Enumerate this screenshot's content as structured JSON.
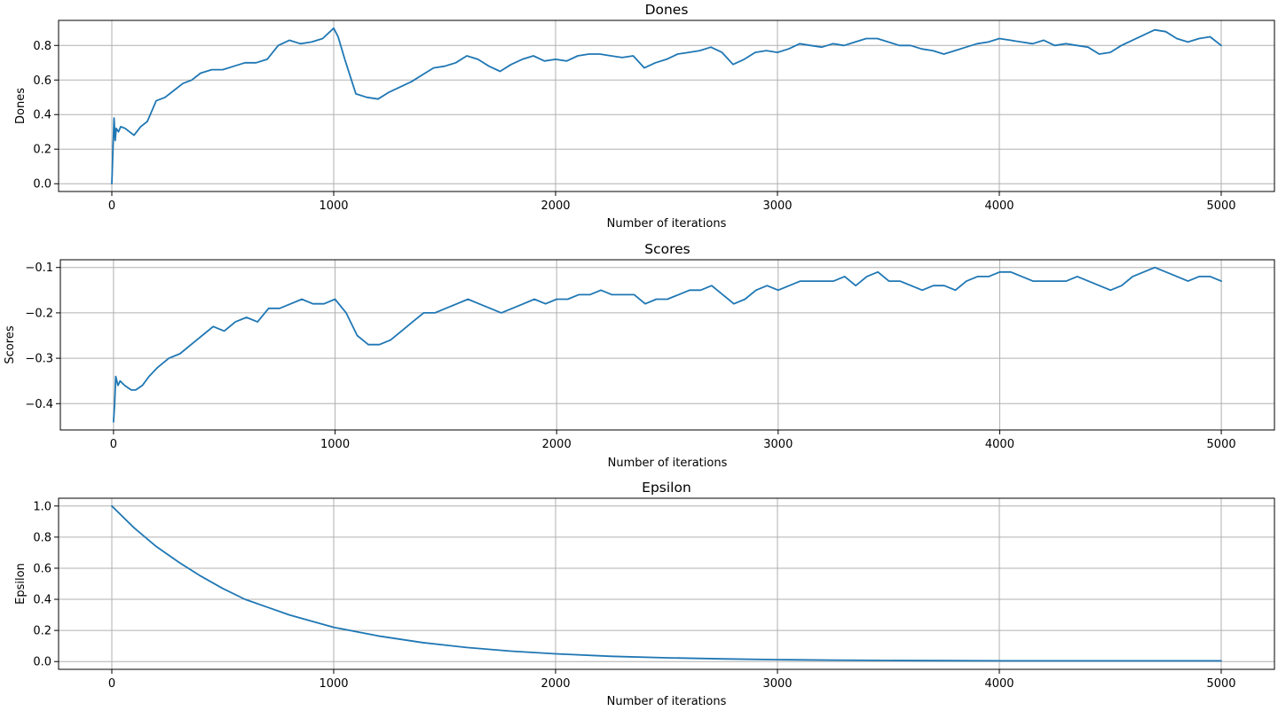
{
  "figure": {
    "background": "#ffffff",
    "line_color": "#1f77b4",
    "grid_color": "#b0b0b0"
  },
  "chart_data": [
    {
      "id": "dones",
      "type": "line",
      "title": "Dones",
      "xlabel": "Number of iterations",
      "ylabel": "Dones",
      "xlim": [
        -240,
        5240
      ],
      "ylim": [
        -0.045,
        0.945
      ],
      "xticks": [
        0,
        1000,
        2000,
        3000,
        4000,
        5000
      ],
      "xtick_labels": [
        "0",
        "1000",
        "2000",
        "3000",
        "4000",
        "5000"
      ],
      "yticks": [
        0.0,
        0.2,
        0.4,
        0.6,
        0.8
      ],
      "ytick_labels": [
        "0.0",
        "0.2",
        "0.4",
        "0.6",
        "0.8"
      ],
      "grid": true,
      "series": [
        {
          "color": "#1f77b4",
          "x": [
            0,
            5,
            10,
            15,
            20,
            30,
            40,
            60,
            80,
            100,
            130,
            160,
            200,
            240,
            280,
            320,
            360,
            400,
            450,
            500,
            550,
            600,
            650,
            700,
            750,
            800,
            850,
            900,
            950,
            1000,
            1020,
            1050,
            1080,
            1100,
            1150,
            1200,
            1250,
            1300,
            1350,
            1400,
            1450,
            1500,
            1550,
            1600,
            1650,
            1700,
            1750,
            1800,
            1850,
            1900,
            1950,
            2000,
            2050,
            2100,
            2150,
            2200,
            2250,
            2300,
            2350,
            2400,
            2450,
            2500,
            2550,
            2600,
            2650,
            2700,
            2750,
            2800,
            2850,
            2900,
            2950,
            3000,
            3050,
            3100,
            3150,
            3200,
            3250,
            3300,
            3350,
            3400,
            3450,
            3500,
            3550,
            3600,
            3650,
            3700,
            3750,
            3800,
            3850,
            3900,
            3950,
            4000,
            4050,
            4100,
            4150,
            4200,
            4250,
            4300,
            4350,
            4400,
            4450,
            4500,
            4550,
            4600,
            4650,
            4700,
            4750,
            4800,
            4850,
            4900,
            4950,
            5000
          ],
          "y": [
            0.0,
            0.2,
            0.38,
            0.25,
            0.32,
            0.3,
            0.33,
            0.32,
            0.3,
            0.28,
            0.33,
            0.36,
            0.48,
            0.5,
            0.54,
            0.58,
            0.6,
            0.64,
            0.66,
            0.66,
            0.68,
            0.7,
            0.7,
            0.72,
            0.8,
            0.83,
            0.81,
            0.82,
            0.84,
            0.9,
            0.85,
            0.72,
            0.6,
            0.52,
            0.5,
            0.49,
            0.53,
            0.56,
            0.59,
            0.63,
            0.67,
            0.68,
            0.7,
            0.74,
            0.72,
            0.68,
            0.65,
            0.69,
            0.72,
            0.74,
            0.71,
            0.72,
            0.71,
            0.74,
            0.75,
            0.75,
            0.74,
            0.73,
            0.74,
            0.67,
            0.7,
            0.72,
            0.75,
            0.76,
            0.77,
            0.79,
            0.76,
            0.69,
            0.72,
            0.76,
            0.77,
            0.76,
            0.78,
            0.81,
            0.8,
            0.79,
            0.81,
            0.8,
            0.82,
            0.84,
            0.84,
            0.82,
            0.8,
            0.8,
            0.78,
            0.77,
            0.75,
            0.77,
            0.79,
            0.81,
            0.82,
            0.84,
            0.83,
            0.82,
            0.81,
            0.83,
            0.8,
            0.81,
            0.8,
            0.79,
            0.75,
            0.76,
            0.8,
            0.83,
            0.86,
            0.89,
            0.88,
            0.84,
            0.82,
            0.84,
            0.85,
            0.8
          ]
        }
      ]
    },
    {
      "id": "scores",
      "type": "line",
      "title": "Scores",
      "xlabel": "Number of iterations",
      "ylabel": "Scores",
      "xlim": [
        -240,
        5240
      ],
      "ylim": [
        -0.458,
        -0.083
      ],
      "xticks": [
        0,
        1000,
        2000,
        3000,
        4000,
        5000
      ],
      "xtick_labels": [
        "0",
        "1000",
        "2000",
        "3000",
        "4000",
        "5000"
      ],
      "yticks": [
        -0.4,
        -0.3,
        -0.2,
        -0.1
      ],
      "ytick_labels": [
        "−0.4",
        "−0.3",
        "−0.2",
        "−0.1"
      ],
      "grid": true,
      "series": [
        {
          "color": "#1f77b4",
          "x": [
            0,
            5,
            10,
            20,
            30,
            50,
            80,
            100,
            130,
            160,
            200,
            250,
            300,
            350,
            400,
            450,
            500,
            550,
            600,
            650,
            700,
            750,
            800,
            850,
            900,
            950,
            1000,
            1050,
            1100,
            1150,
            1200,
            1250,
            1300,
            1350,
            1400,
            1450,
            1500,
            1550,
            1600,
            1650,
            1700,
            1750,
            1800,
            1850,
            1900,
            1950,
            2000,
            2050,
            2100,
            2150,
            2200,
            2250,
            2300,
            2350,
            2400,
            2450,
            2500,
            2550,
            2600,
            2650,
            2700,
            2750,
            2800,
            2850,
            2900,
            2950,
            3000,
            3050,
            3100,
            3150,
            3200,
            3250,
            3300,
            3350,
            3400,
            3450,
            3500,
            3550,
            3600,
            3650,
            3700,
            3750,
            3800,
            3850,
            3900,
            3950,
            4000,
            4050,
            4100,
            4150,
            4200,
            4250,
            4300,
            4350,
            4400,
            4450,
            4500,
            4550,
            4600,
            4650,
            4700,
            4750,
            4800,
            4850,
            4900,
            4950,
            5000
          ],
          "y": [
            -0.44,
            -0.4,
            -0.34,
            -0.36,
            -0.35,
            -0.36,
            -0.37,
            -0.37,
            -0.36,
            -0.34,
            -0.32,
            -0.3,
            -0.29,
            -0.27,
            -0.25,
            -0.23,
            -0.24,
            -0.22,
            -0.21,
            -0.22,
            -0.19,
            -0.19,
            -0.18,
            -0.17,
            -0.18,
            -0.18,
            -0.17,
            -0.2,
            -0.25,
            -0.27,
            -0.27,
            -0.26,
            -0.24,
            -0.22,
            -0.2,
            -0.2,
            -0.19,
            -0.18,
            -0.17,
            -0.18,
            -0.19,
            -0.2,
            -0.19,
            -0.18,
            -0.17,
            -0.18,
            -0.17,
            -0.17,
            -0.16,
            -0.16,
            -0.15,
            -0.16,
            -0.16,
            -0.16,
            -0.18,
            -0.17,
            -0.17,
            -0.16,
            -0.15,
            -0.15,
            -0.14,
            -0.16,
            -0.18,
            -0.17,
            -0.15,
            -0.14,
            -0.15,
            -0.14,
            -0.13,
            -0.13,
            -0.13,
            -0.13,
            -0.12,
            -0.14,
            -0.12,
            -0.11,
            -0.13,
            -0.13,
            -0.14,
            -0.15,
            -0.14,
            -0.14,
            -0.15,
            -0.13,
            -0.12,
            -0.12,
            -0.11,
            -0.11,
            -0.12,
            -0.13,
            -0.13,
            -0.13,
            -0.13,
            -0.12,
            -0.13,
            -0.14,
            -0.15,
            -0.14,
            -0.12,
            -0.11,
            -0.1,
            -0.11,
            -0.12,
            -0.13,
            -0.12,
            -0.12,
            -0.13
          ]
        }
      ]
    },
    {
      "id": "epsilon",
      "type": "line",
      "title": "Epsilon",
      "xlabel": "Number of iterations",
      "ylabel": "Epsilon",
      "xlim": [
        -240,
        5240
      ],
      "ylim": [
        -0.05,
        1.05
      ],
      "xticks": [
        0,
        1000,
        2000,
        3000,
        4000,
        5000
      ],
      "xtick_labels": [
        "0",
        "1000",
        "2000",
        "3000",
        "4000",
        "5000"
      ],
      "yticks": [
        0.0,
        0.2,
        0.4,
        0.6,
        0.8,
        1.0
      ],
      "ytick_labels": [
        "0.0",
        "0.2",
        "0.4",
        "0.6",
        "0.8",
        "1.0"
      ],
      "grid": true,
      "series": [
        {
          "color": "#1f77b4",
          "x": [
            0,
            100,
            200,
            300,
            400,
            500,
            600,
            700,
            800,
            900,
            1000,
            1200,
            1400,
            1600,
            1800,
            2000,
            2250,
            2500,
            2750,
            3000,
            3250,
            3500,
            3750,
            4000,
            4250,
            4500,
            4750,
            5000
          ],
          "y": [
            1.0,
            0.86,
            0.74,
            0.64,
            0.55,
            0.47,
            0.4,
            0.35,
            0.3,
            0.26,
            0.22,
            0.165,
            0.122,
            0.09,
            0.067,
            0.05,
            0.034,
            0.024,
            0.017,
            0.012,
            0.009,
            0.007,
            0.006,
            0.005,
            0.005,
            0.005,
            0.005,
            0.005
          ]
        }
      ]
    }
  ]
}
